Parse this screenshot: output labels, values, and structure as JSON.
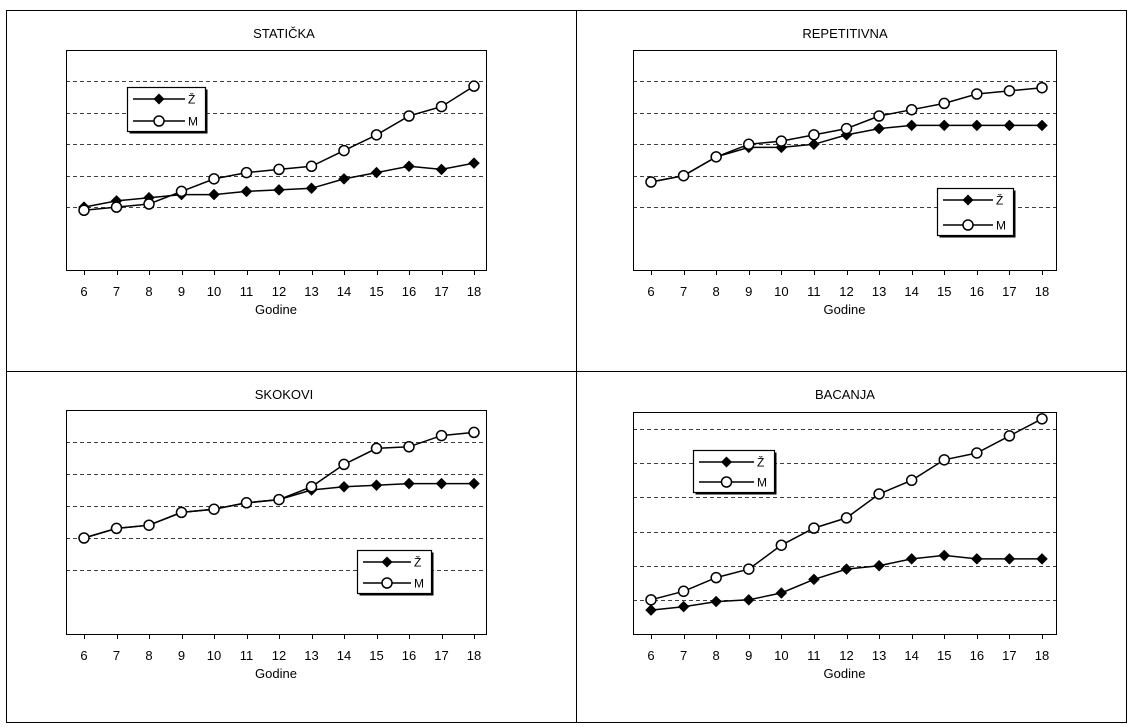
{
  "chart_data": [
    {
      "type": "line",
      "title": "STATIČKA",
      "xlabel": "Godine",
      "ylabel": "",
      "x": [
        6,
        7,
        8,
        9,
        10,
        11,
        12,
        13,
        14,
        15,
        16,
        17,
        18
      ],
      "ylim": [
        -1,
        6
      ],
      "gridlines": [
        1,
        2,
        3,
        4,
        5
      ],
      "grid": "dashed horizontal",
      "legend_position": "top-left",
      "series": [
        {
          "name": "Ž",
          "marker": "filled-diamond",
          "values": [
            1.0,
            1.2,
            1.3,
            1.4,
            1.4,
            1.5,
            1.55,
            1.6,
            1.9,
            2.1,
            2.3,
            2.2,
            2.4
          ]
        },
        {
          "name": "M",
          "marker": "open-circle",
          "values": [
            0.9,
            1.0,
            1.1,
            1.5,
            1.9,
            2.1,
            2.2,
            2.3,
            2.8,
            3.3,
            3.9,
            4.2,
            4.85
          ]
        }
      ]
    },
    {
      "type": "line",
      "title": "REPETITIVNA",
      "xlabel": "Godine",
      "ylabel": "",
      "x": [
        6,
        7,
        8,
        9,
        10,
        11,
        12,
        13,
        14,
        15,
        16,
        17,
        18
      ],
      "ylim": [
        -1,
        6
      ],
      "gridlines": [
        1,
        2,
        3,
        4,
        5
      ],
      "grid": "dashed horizontal",
      "legend_position": "bottom-right",
      "series": [
        {
          "name": "Ž",
          "marker": "filled-diamond",
          "values": [
            1.8,
            2.0,
            2.6,
            2.9,
            2.9,
            3.0,
            3.3,
            3.5,
            3.6,
            3.6,
            3.6,
            3.6,
            3.6
          ]
        },
        {
          "name": "M",
          "marker": "open-circle",
          "values": [
            1.8,
            2.0,
            2.6,
            3.0,
            3.1,
            3.3,
            3.5,
            3.9,
            4.1,
            4.3,
            4.6,
            4.7,
            4.8
          ]
        }
      ]
    },
    {
      "type": "line",
      "title": "SKOKOVI",
      "xlabel": "Godine",
      "ylabel": "",
      "x": [
        6,
        7,
        8,
        9,
        10,
        11,
        12,
        13,
        14,
        15,
        16,
        17,
        18
      ],
      "ylim": [
        -1,
        6
      ],
      "gridlines": [
        1,
        2,
        3,
        4,
        5
      ],
      "grid": "dashed horizontal",
      "legend_position": "bottom-right",
      "series": [
        {
          "name": "Ž",
          "marker": "filled-diamond",
          "values": [
            2.0,
            2.3,
            2.4,
            2.8,
            2.9,
            3.1,
            3.2,
            3.5,
            3.6,
            3.65,
            3.7,
            3.7,
            3.7
          ]
        },
        {
          "name": "M",
          "marker": "open-circle",
          "values": [
            2.0,
            2.3,
            2.4,
            2.8,
            2.9,
            3.1,
            3.2,
            3.6,
            4.3,
            4.8,
            4.85,
            5.2,
            5.3
          ]
        }
      ]
    },
    {
      "type": "line",
      "title": "BACANJA",
      "xlabel": "Godine",
      "ylabel": "",
      "x": [
        6,
        7,
        8,
        9,
        10,
        11,
        12,
        13,
        14,
        15,
        16,
        17,
        18
      ],
      "ylim": [
        0,
        6.5
      ],
      "gridlines": [
        1,
        2,
        3,
        4,
        5,
        6
      ],
      "grid": "dashed horizontal",
      "legend_position": "top-left",
      "series": [
        {
          "name": "Ž",
          "marker": "filled-diamond",
          "values": [
            0.7,
            0.8,
            0.95,
            1.0,
            1.2,
            1.6,
            1.9,
            2.0,
            2.2,
            2.3,
            2.2,
            2.2,
            2.2
          ]
        },
        {
          "name": "M",
          "marker": "open-circle",
          "values": [
            1.0,
            1.25,
            1.65,
            1.9,
            2.6,
            3.1,
            3.4,
            4.1,
            4.5,
            5.1,
            5.3,
            5.8,
            6.3
          ]
        }
      ]
    }
  ]
}
